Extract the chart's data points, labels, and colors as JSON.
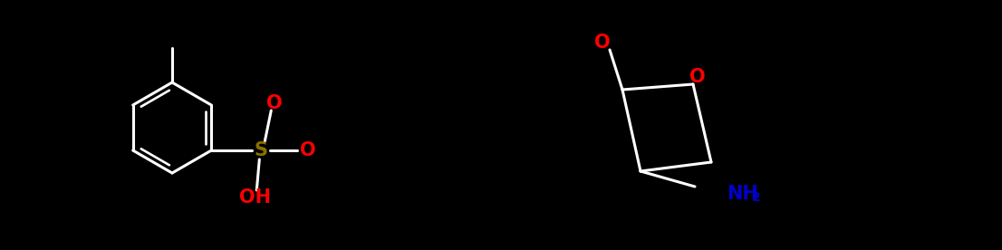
{
  "background_color": "#000000",
  "fig_width": 11.06,
  "fig_height": 2.76,
  "dpi": 100,
  "colors": {
    "bond": "#000000",
    "white": "#ffffff",
    "O": "#ff0000",
    "S": "#808000",
    "N": "#0000cc",
    "C": "#000000",
    "label": "#000000"
  },
  "lw": 2.2,
  "font_size": 14
}
